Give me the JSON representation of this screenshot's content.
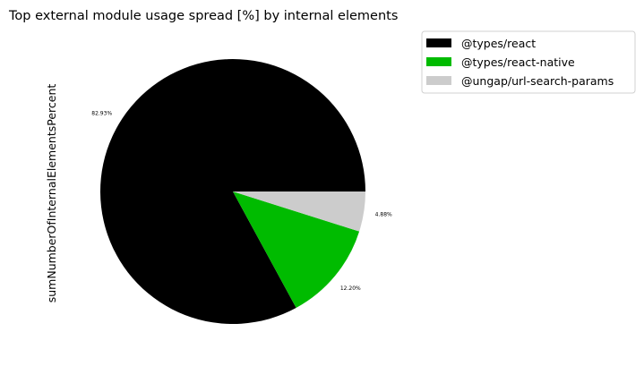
{
  "chart_data": {
    "type": "pie",
    "title": "Top external module usage spread [%] by internal elements",
    "ylabel": "sumNumberOfInternalElementsPercent",
    "legend_position": "top-right",
    "categories": [
      "@types/react",
      "@types/react-native",
      "@ungap/url-search-params"
    ],
    "values": [
      82.93,
      12.2,
      4.88
    ],
    "labels": [
      "82.93%",
      "12.20%",
      "4.88%"
    ],
    "colors": [
      "#000000",
      "#00bb00",
      "#cccccc"
    ]
  }
}
